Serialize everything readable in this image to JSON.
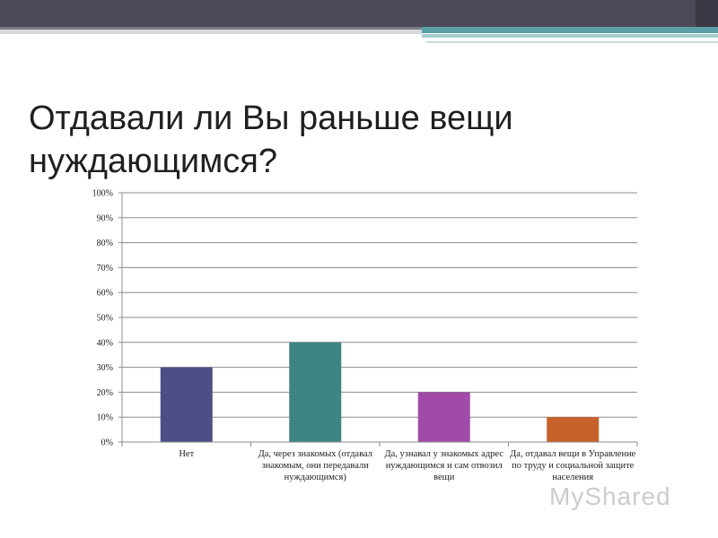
{
  "slide": {
    "title": "Отдавали ли Вы раньше вещи нуждающимся?",
    "watermark": "MyShared"
  },
  "chart_data": {
    "type": "bar",
    "title": "",
    "xlabel": "",
    "ylabel": "",
    "categories": [
      "Нет",
      "Да, через знакомых (отдавал знакомым, они передавали нуждающимся)",
      "Да, узнавал у знакомых адрес нуждающимся и сам отвозил вещи",
      "Да, отдавал вещи в Управление по труду и социальной защите населения"
    ],
    "values": [
      30,
      40,
      20,
      10
    ],
    "bar_colors": [
      "#4d4e87",
      "#3e8482",
      "#a24aa8",
      "#c8622b"
    ],
    "ylim": [
      0,
      100
    ],
    "yticks": [
      0,
      10,
      20,
      30,
      40,
      50,
      60,
      70,
      80,
      90,
      100
    ],
    "ytick_labels": [
      "0%",
      "10%",
      "20%",
      "30%",
      "40%",
      "50%",
      "60%",
      "70%",
      "80%",
      "90%",
      "100%"
    ],
    "grid": true,
    "legend": "none"
  }
}
